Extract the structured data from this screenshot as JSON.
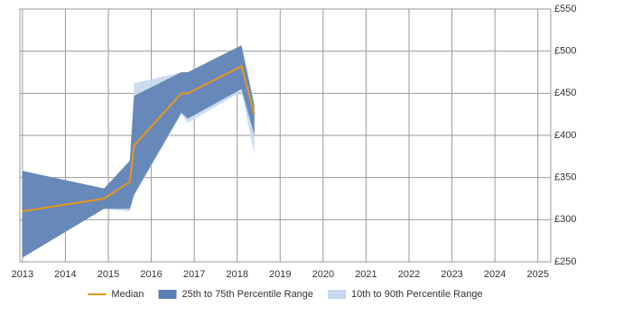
{
  "chart_data": {
    "type": "range-line",
    "xlim": [
      2012.94,
      2025.3
    ],
    "xticks": [
      2013,
      2014,
      2015,
      2016,
      2017,
      2018,
      2019,
      2020,
      2021,
      2022,
      2023,
      2024,
      2025
    ],
    "ylim": [
      250,
      550
    ],
    "yticks": [
      {
        "value": 250,
        "label": "£250"
      },
      {
        "value": 300,
        "label": "£300"
      },
      {
        "value": 350,
        "label": "£350"
      },
      {
        "value": 400,
        "label": "£400"
      },
      {
        "value": 450,
        "label": "£450"
      },
      {
        "value": 500,
        "label": "£500"
      },
      {
        "value": 550,
        "label": "£550"
      }
    ],
    "grid": true,
    "legend": "bottom",
    "x": [
      2013.0,
      2014.9,
      2015.5,
      2015.6,
      2016.7,
      2016.85,
      2018.1,
      2018.4
    ],
    "series": [
      {
        "name": "10th to 90th Percentile Range",
        "color": "#c6d8ee",
        "kind": "band",
        "upper": [
          358,
          337,
          370,
          462,
          475,
          475,
          505,
          440
        ],
        "lower": [
          255,
          313,
          310,
          328,
          425,
          415,
          452,
          378
        ]
      },
      {
        "name": "25th to 75th Percentile Range",
        "color": "#5b80b4",
        "kind": "band",
        "upper": [
          358,
          337,
          370,
          447,
          475,
          475,
          507,
          435
        ],
        "lower": [
          255,
          313,
          313,
          330,
          427,
          420,
          455,
          400
        ]
      },
      {
        "name": "Median",
        "color": "#e8961c",
        "kind": "line",
        "values": [
          310,
          325,
          345,
          388,
          450,
          450,
          482,
          425
        ]
      }
    ]
  }
}
